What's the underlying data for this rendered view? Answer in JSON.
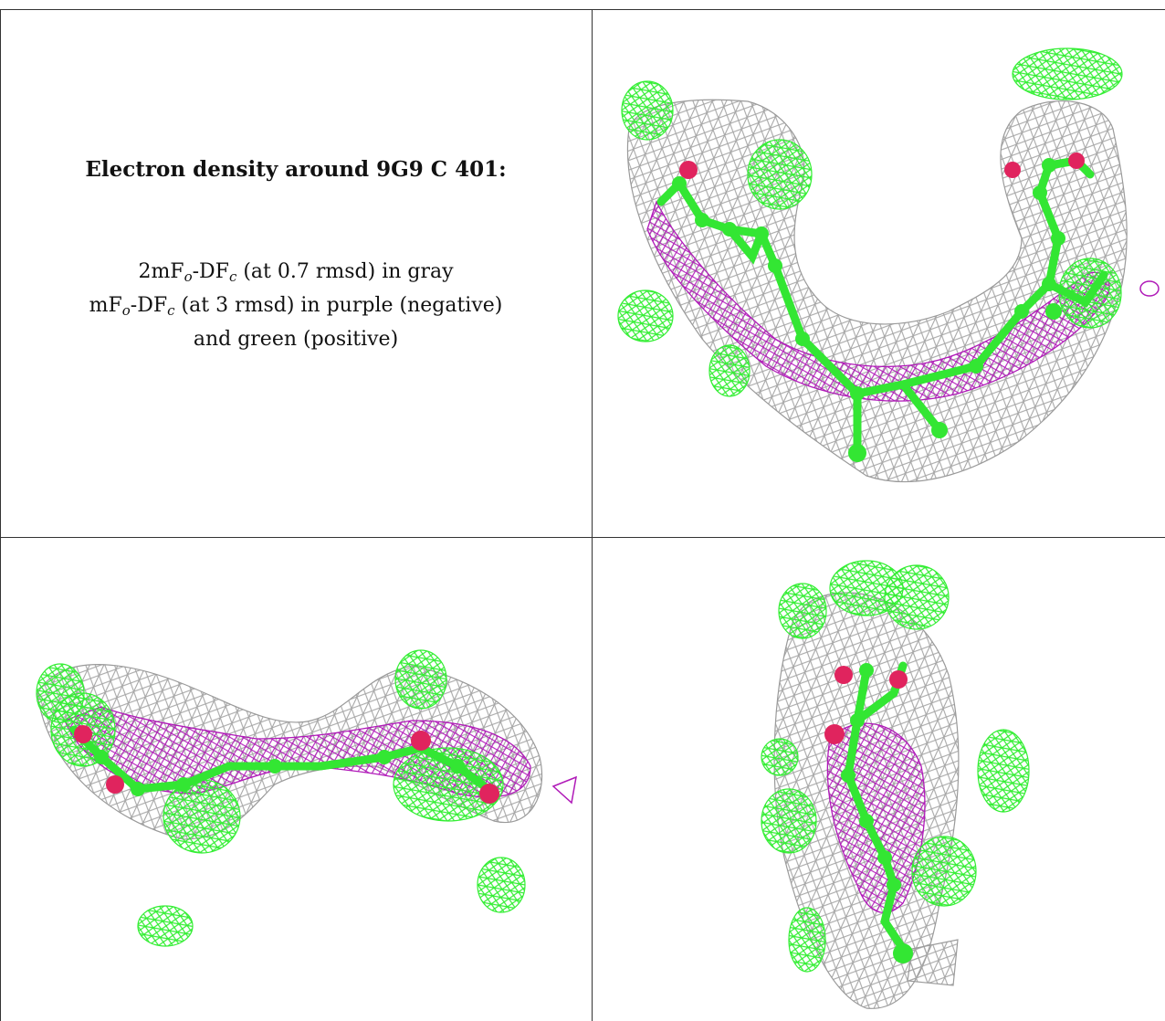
{
  "caption": {
    "title": "Electron density around 9G9 C 401:",
    "line1": {
      "pre": "2mF",
      "sub1": "o",
      "mid": "-DF",
      "sub2": "c",
      "post": " (at 0.7 rmsd) in gray"
    },
    "line2": {
      "pre": "mF",
      "sub1": "o",
      "mid": "-DF",
      "sub2": "c",
      "post": " (at 3 rmsd) in purple (negative)"
    },
    "line3": "and green (positive)"
  },
  "colors": {
    "gray_mesh": "#9a9a9a",
    "purple_mesh": "#b01ab8",
    "green_mesh": "#33ee33",
    "atom_carbon": "#33e633",
    "atom_oxygen": "#e0245e"
  },
  "panels": [
    {
      "name": "view-1",
      "icon": "electron-density-mesh-view"
    },
    {
      "name": "view-2",
      "icon": "electron-density-mesh-view"
    },
    {
      "name": "view-3",
      "icon": "electron-density-mesh-view"
    }
  ]
}
